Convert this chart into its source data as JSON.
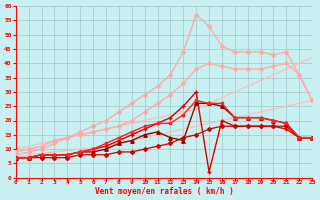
{
  "xlabel": "Vent moyen/en rafales ( km/h )",
  "background_color": "#c8f0f0",
  "grid_color": "#a0c8c8",
  "xlim": [
    0,
    23
  ],
  "ylim": [
    0,
    60
  ],
  "yticks": [
    0,
    5,
    10,
    15,
    20,
    25,
    30,
    35,
    40,
    45,
    50,
    55,
    60
  ],
  "xticks": [
    0,
    1,
    2,
    3,
    4,
    5,
    6,
    7,
    8,
    9,
    10,
    11,
    12,
    13,
    14,
    15,
    16,
    17,
    18,
    19,
    20,
    21,
    22,
    23
  ],
  "series": [
    {
      "x": [
        0,
        1,
        2,
        3,
        4,
        5,
        6,
        7,
        8,
        9,
        10,
        11,
        12,
        13,
        14,
        15,
        16,
        17,
        18,
        19,
        20,
        21,
        22,
        23
      ],
      "y": [
        7,
        8,
        8.5,
        9,
        9.5,
        10,
        10.5,
        11,
        12,
        13,
        14,
        15,
        16,
        17,
        18,
        19,
        20,
        21,
        22,
        23,
        24,
        25,
        26,
        27
      ],
      "color": "#ffbbbb",
      "lw": 0.9,
      "marker": null,
      "ms": 0
    },
    {
      "x": [
        0,
        1,
        2,
        3,
        4,
        5,
        6,
        7,
        8,
        9,
        10,
        11,
        12,
        13,
        14,
        15,
        16,
        17,
        18,
        19,
        20,
        21,
        22,
        23
      ],
      "y": [
        10,
        11,
        12,
        13,
        14,
        15,
        16,
        17,
        18,
        19,
        20,
        21,
        22,
        23,
        24,
        26,
        28,
        30,
        32,
        34,
        36,
        38,
        40,
        42
      ],
      "color": "#ffbbbb",
      "lw": 0.9,
      "marker": null,
      "ms": 0
    },
    {
      "x": [
        0,
        1,
        2,
        3,
        4,
        5,
        6,
        7,
        8,
        9,
        10,
        11,
        12,
        13,
        14,
        15,
        16,
        17,
        18,
        19,
        20,
        21,
        22,
        23
      ],
      "y": [
        8,
        9,
        10,
        12,
        14,
        16,
        18,
        20,
        23,
        26,
        29,
        32,
        36,
        44,
        57,
        53,
        46,
        44,
        44,
        44,
        43,
        44,
        36,
        27
      ],
      "color": "#ffaaaa",
      "lw": 1.0,
      "marker": "D",
      "ms": 2.0
    },
    {
      "x": [
        0,
        1,
        2,
        3,
        4,
        5,
        6,
        7,
        8,
        9,
        10,
        11,
        12,
        13,
        14,
        15,
        16,
        17,
        18,
        19,
        20,
        21,
        22,
        23
      ],
      "y": [
        9,
        10,
        11,
        13,
        14,
        15,
        16,
        17,
        18,
        20,
        23,
        26,
        29,
        33,
        38,
        40,
        39,
        38,
        38,
        38,
        39,
        40,
        36,
        27
      ],
      "color": "#ffaaaa",
      "lw": 1.0,
      "marker": "D",
      "ms": 2.0
    },
    {
      "x": [
        0,
        1,
        2,
        3,
        4,
        5,
        6,
        7,
        8,
        9,
        10,
        11,
        12,
        13,
        14,
        15,
        16,
        17,
        18,
        19,
        20,
        21,
        22,
        23
      ],
      "y": [
        7,
        7,
        8,
        8,
        8,
        9,
        10,
        11,
        13,
        15,
        17,
        19,
        21,
        25,
        30,
        2,
        20,
        18,
        18,
        18,
        18,
        17,
        14,
        14
      ],
      "color": "#dd0000",
      "lw": 1.0,
      "marker": "+",
      "ms": 3.0
    },
    {
      "x": [
        0,
        1,
        2,
        3,
        4,
        5,
        6,
        7,
        8,
        9,
        10,
        11,
        12,
        13,
        14,
        15,
        16,
        17,
        18,
        19,
        20,
        21,
        22,
        23
      ],
      "y": [
        7,
        7,
        8,
        8,
        8,
        9,
        9,
        10,
        12,
        13,
        15,
        16,
        14,
        13,
        26,
        26,
        25,
        21,
        21,
        21,
        20,
        19,
        14,
        14
      ],
      "color": "#990000",
      "lw": 1.0,
      "marker": "^",
      "ms": 2.5
    },
    {
      "x": [
        0,
        1,
        2,
        3,
        4,
        5,
        6,
        7,
        8,
        9,
        10,
        11,
        12,
        13,
        14,
        15,
        16,
        17,
        18,
        19,
        20,
        21,
        22,
        23
      ],
      "y": [
        7,
        7,
        7,
        7,
        7,
        8,
        8,
        8,
        9,
        9,
        10,
        11,
        12,
        14,
        15,
        17,
        18,
        18,
        18,
        18,
        18,
        18,
        14,
        14
      ],
      "color": "#cc0000",
      "lw": 0.9,
      "marker": "D",
      "ms": 2.0
    },
    {
      "x": [
        0,
        1,
        2,
        3,
        4,
        5,
        6,
        7,
        8,
        9,
        10,
        11,
        12,
        13,
        14,
        15,
        16,
        17,
        18,
        19,
        20,
        21,
        22,
        23
      ],
      "y": [
        7,
        7,
        8,
        8,
        8,
        9,
        10,
        12,
        14,
        16,
        18,
        19,
        19,
        22,
        27,
        26,
        26,
        21,
        21,
        21,
        20,
        19,
        14,
        14
      ],
      "color": "#ff2222",
      "lw": 1.0,
      "marker": "s",
      "ms": 2.0
    }
  ]
}
